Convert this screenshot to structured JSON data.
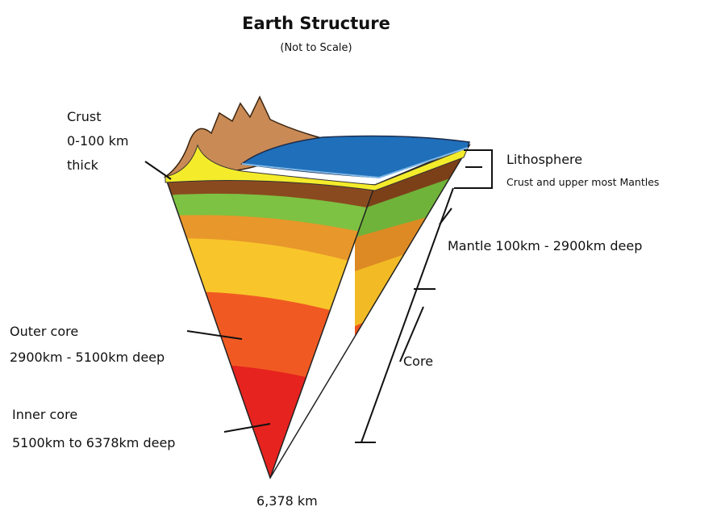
{
  "header": {
    "title": "Earth Structure",
    "subtitle": "(Not to Scale)"
  },
  "labels": {
    "crust": [
      "Crust",
      "0-100 km",
      "thick"
    ],
    "lithosphere": {
      "title": "Lithosphere",
      "description": "Crust and upper most Mantles"
    },
    "mantle": "Mantle 100km - 2900km deep",
    "outer_core": [
      "Outer core",
      "2900km - 5100km deep"
    ],
    "inner_core": [
      "Inner core",
      "5100km to 6378km deep"
    ],
    "core": "Core",
    "depth": "6,378 km"
  }
}
